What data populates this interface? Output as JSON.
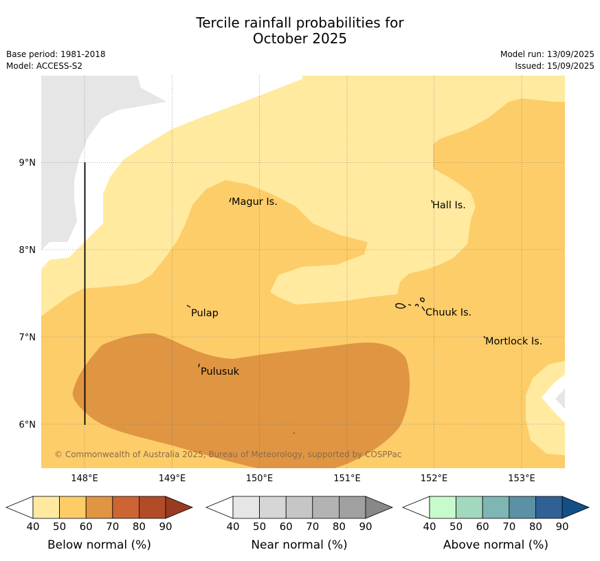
{
  "title": {
    "line1": "Tercile rainfall probabilities for",
    "line2": "October 2025"
  },
  "meta": {
    "base_period": "Base period: 1981-2018",
    "model": "Model: ACCESS-S2",
    "model_run": "Model run: 13/09/2025",
    "issued": "Issued: 15/09/2025"
  },
  "map": {
    "x_ticks": [
      "148°E",
      "149°E",
      "150°E",
      "151°E",
      "152°E",
      "153°E"
    ],
    "y_ticks": [
      "9°N",
      "8°N",
      "7°N",
      "6°N"
    ],
    "places": [
      "Magur Is.",
      "Hall Is.",
      "Pulap",
      "Chuuk Is.",
      "Mortlock Is.",
      "Pulusuk"
    ],
    "copyright": "© Commonwealth of Australia 2025, Bureau of Meteorology, supported by COSPPac",
    "colors": {
      "no_data": "#e6e6e6",
      "below_40_50": "#ffeaa0",
      "below_50_60": "#fdcd69",
      "below_60_70": "#e09543"
    }
  },
  "legends": [
    {
      "title": "Below normal (%)",
      "ticks": [
        "40",
        "50",
        "60",
        "70",
        "80",
        "90"
      ],
      "colors": [
        "#ffffff",
        "#ffe99f",
        "#fdcc67",
        "#e09543",
        "#cc6434",
        "#b24c28",
        "#9a3a20"
      ]
    },
    {
      "title": "Near normal (%)",
      "ticks": [
        "40",
        "50",
        "60",
        "70",
        "80",
        "90"
      ],
      "colors": [
        "#ffffff",
        "#e6e6e6",
        "#d6d6d6",
        "#c6c6c6",
        "#b3b3b3",
        "#a0a0a0",
        "#888888"
      ]
    },
    {
      "title": "Above normal (%)",
      "ticks": [
        "40",
        "50",
        "60",
        "70",
        "80",
        "90"
      ],
      "colors": [
        "#ffffff",
        "#c8fbcb",
        "#a1d8be",
        "#7fb5b3",
        "#5b91a4",
        "#306196",
        "#124f87"
      ]
    }
  ]
}
